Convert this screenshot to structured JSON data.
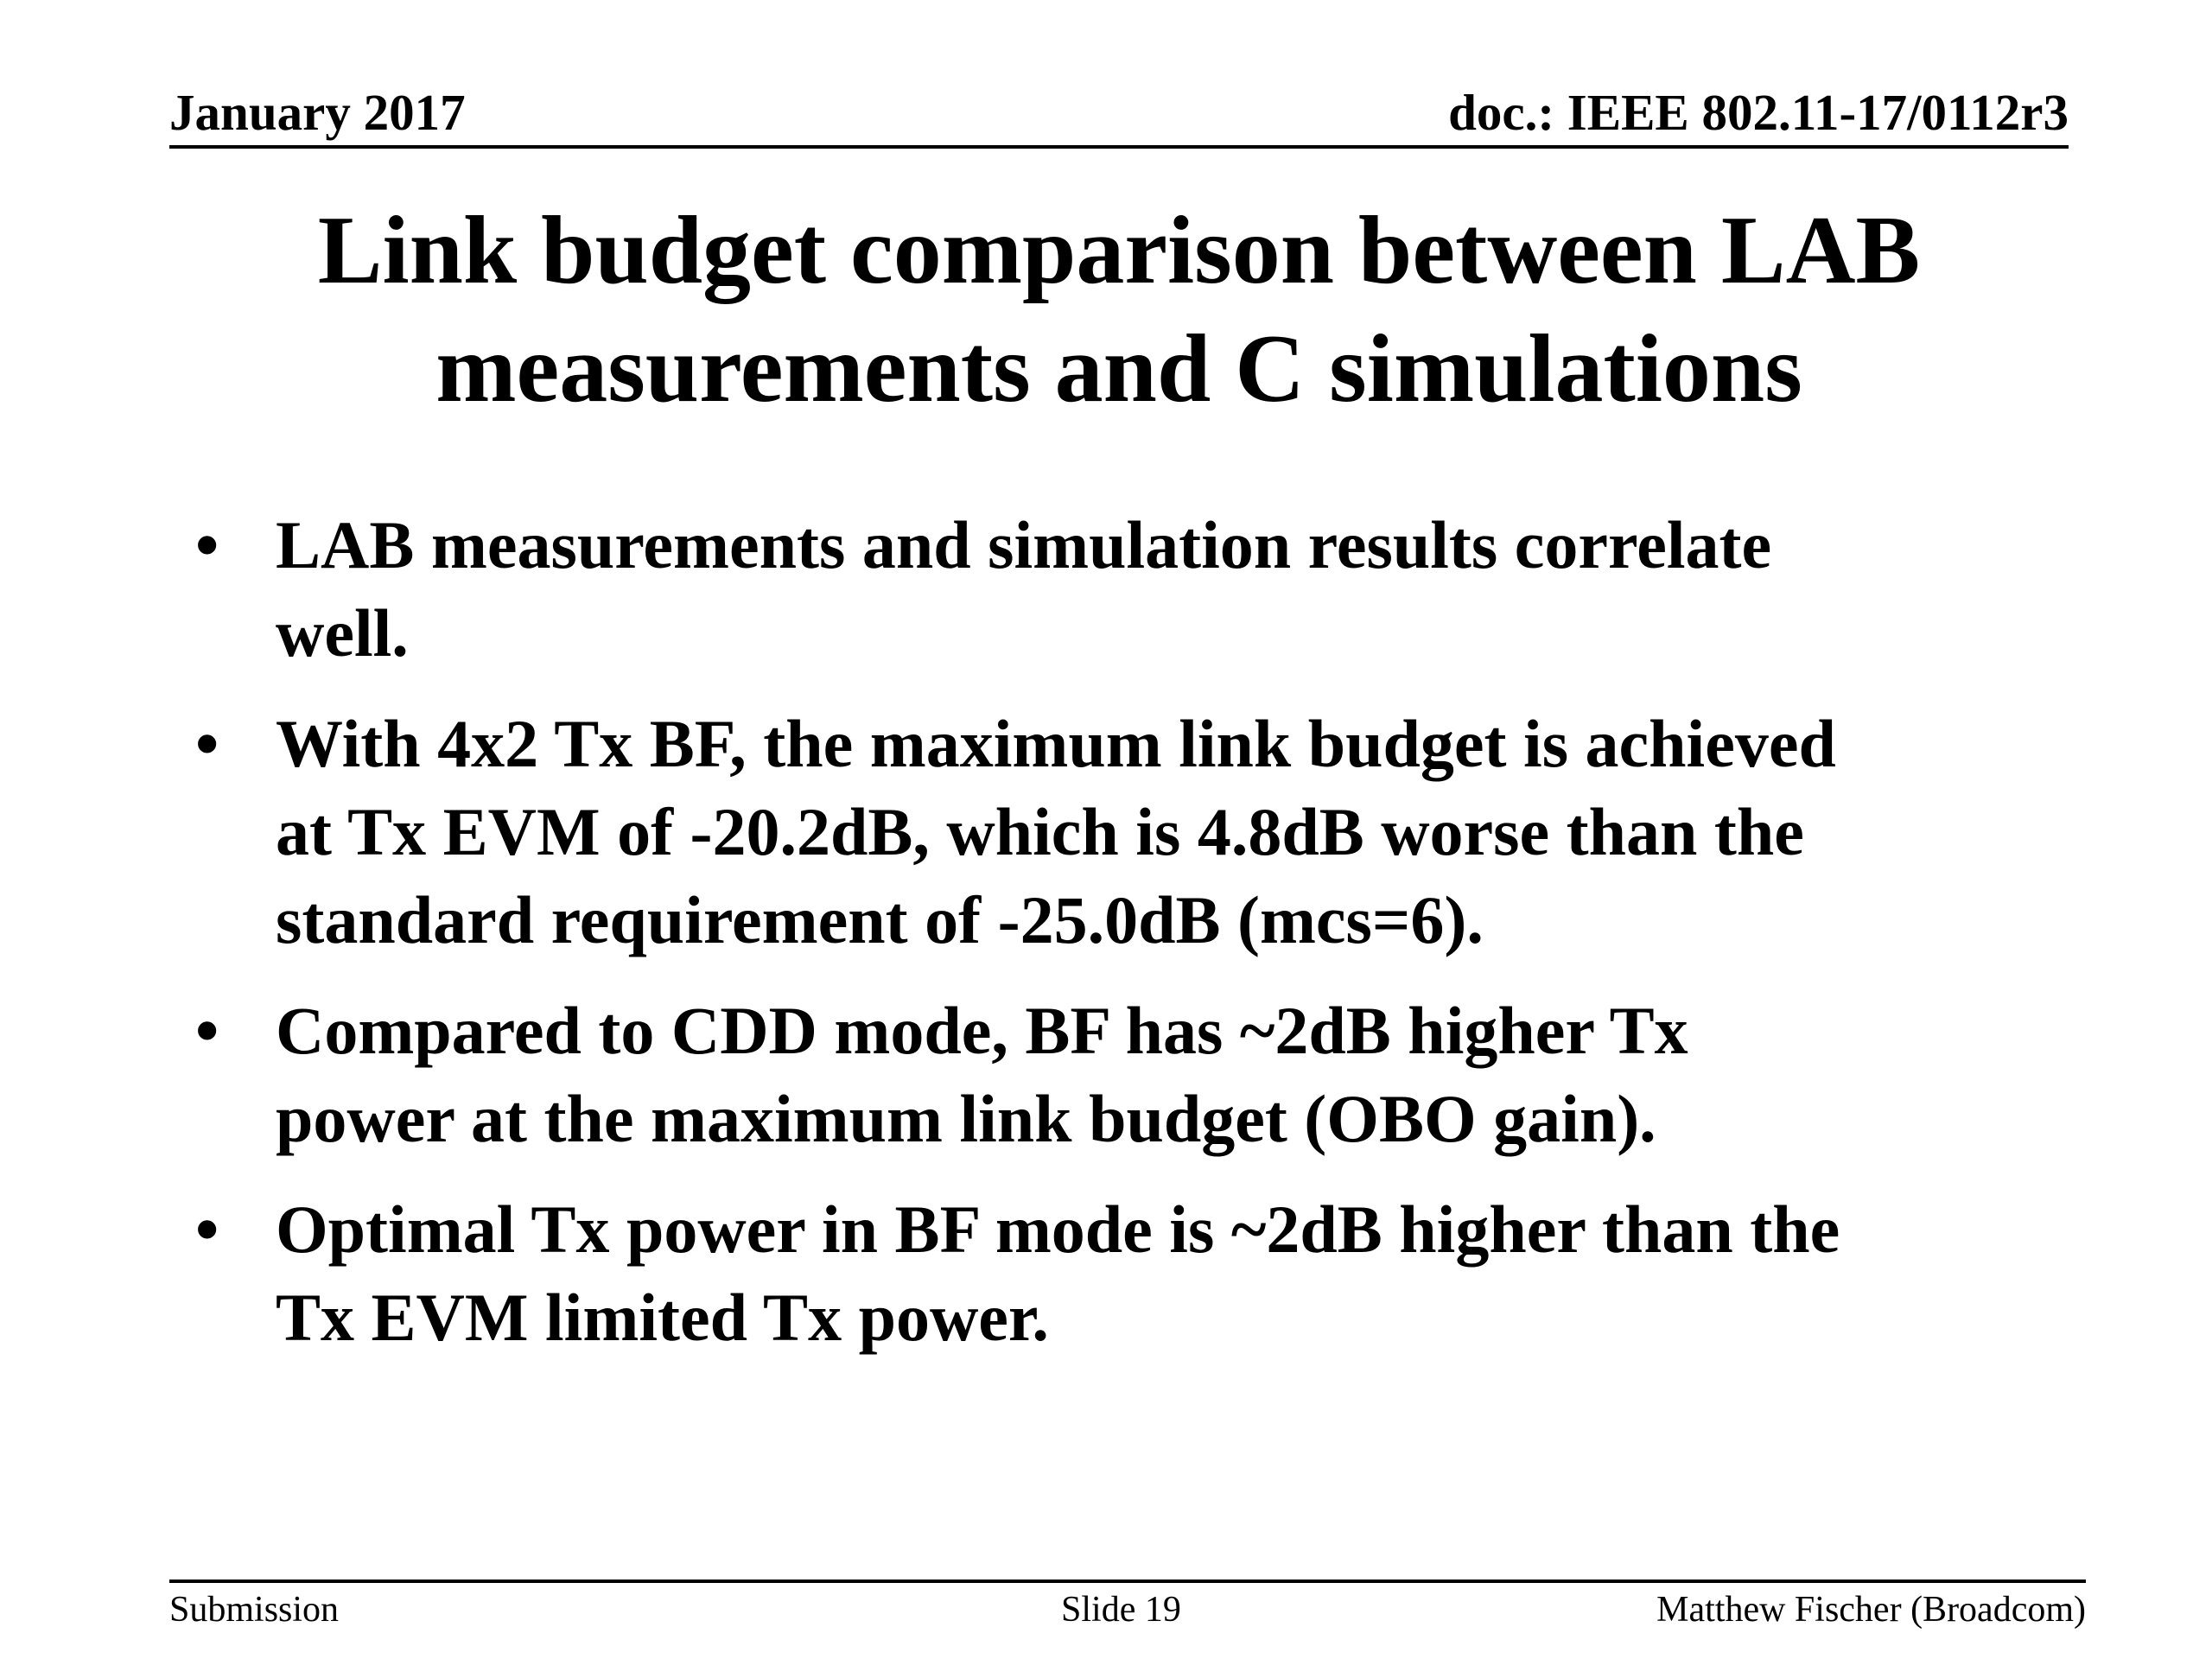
{
  "header": {
    "date": "January 2017",
    "doc_id": "doc.: IEEE 802.11-17/0112r3"
  },
  "title": {
    "lines": [
      "Link budget comparison between LAB",
      "measurements and C simulations"
    ]
  },
  "bullets": [
    {
      "symbol": "•",
      "lines": [
        "LAB measurements and simulation results correlate",
        "well."
      ]
    },
    {
      "symbol": "•",
      "lines": [
        "With 4x2 Tx BF, the maximum link budget is achieved",
        "at Tx EVM of -20.2dB, which is 4.8dB worse than the",
        "standard requirement of -25.0dB (mcs=6)."
      ]
    },
    {
      "symbol": "•",
      "lines": [
        "Compared to CDD mode, BF has ~2dB higher Tx",
        "power at the maximum link budget (OBO gain)."
      ]
    },
    {
      "symbol": "•",
      "lines": [
        "Optimal Tx power in BF mode is ~2dB higher than the",
        "Tx EVM limited Tx power."
      ]
    }
  ],
  "footer": {
    "left": "Submission",
    "center": "Slide 19",
    "right": "Matthew Fischer (Broadcom)"
  }
}
